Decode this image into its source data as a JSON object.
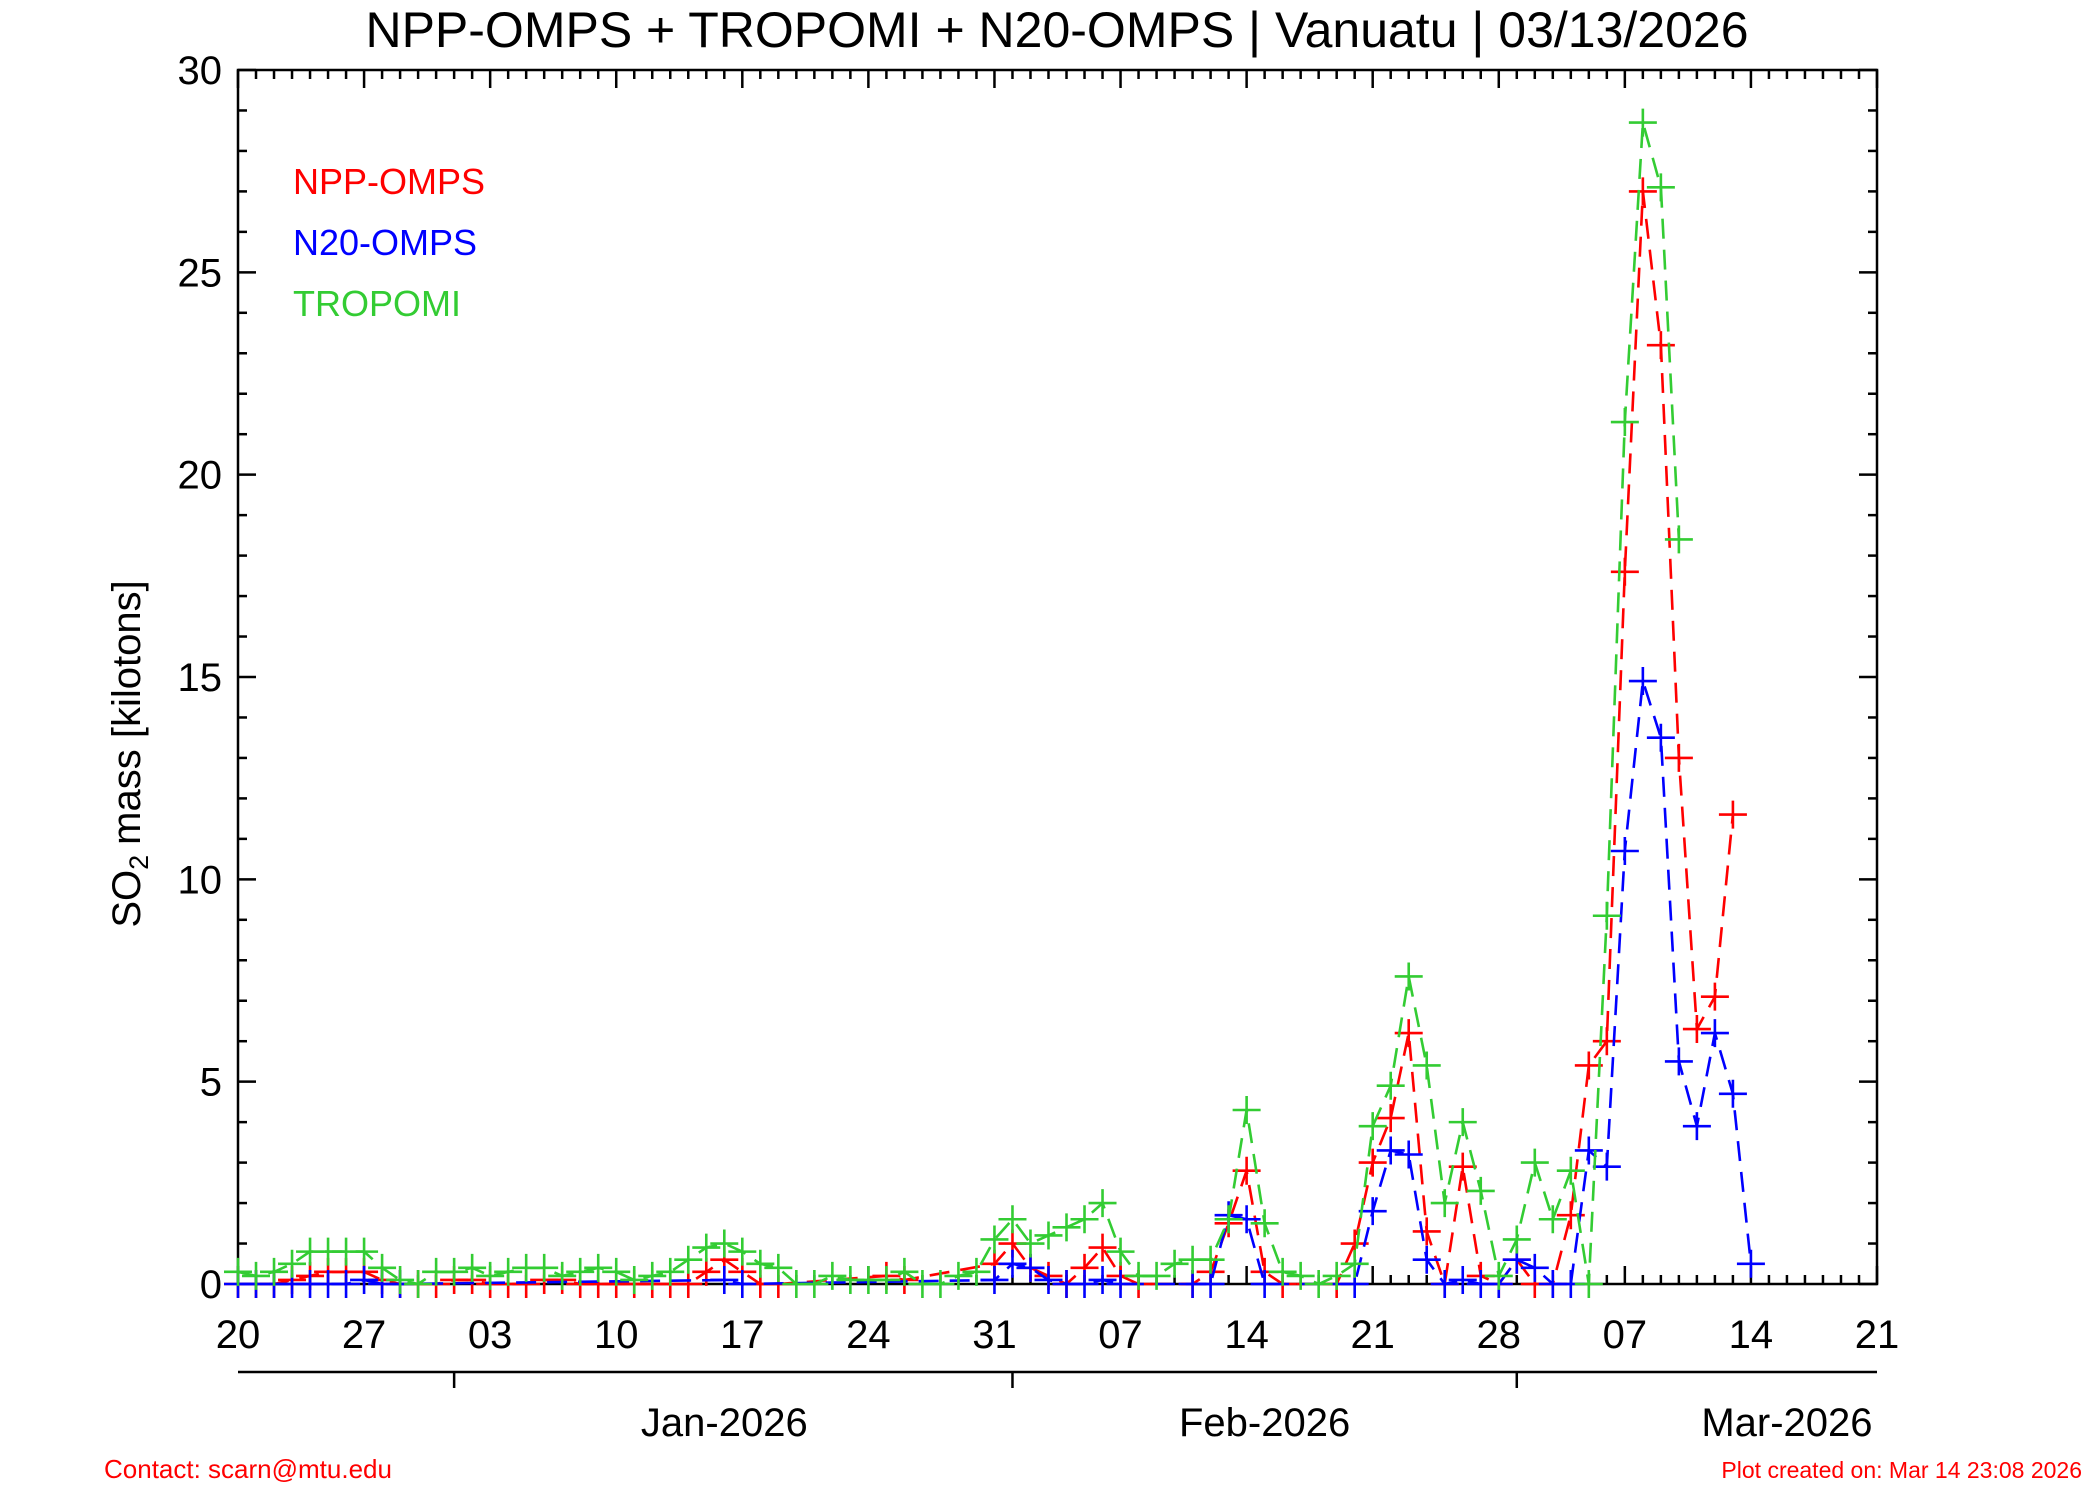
{
  "chart_data": {
    "type": "line",
    "title": "NPP-OMPS + TROPOMI + N20-OMPS | Vanuatu | 03/13/2026",
    "ylabel": "mass [kilotons]",
    "ylabel_prefix": "SO",
    "ylabel_subscript": "2",
    "xlabel": "",
    "ylim": [
      0,
      30
    ],
    "y_ticks": [
      0,
      5,
      10,
      15,
      20,
      25,
      30
    ],
    "x_start": "2025-12-20",
    "x_end": "2026-03-21",
    "x_tick_labels": [
      {
        "date": "2025-12-20",
        "label": "20"
      },
      {
        "date": "2025-12-27",
        "label": "27"
      },
      {
        "date": "2026-01-03",
        "label": "03"
      },
      {
        "date": "2026-01-10",
        "label": "10"
      },
      {
        "date": "2026-01-17",
        "label": "17"
      },
      {
        "date": "2026-01-24",
        "label": "24"
      },
      {
        "date": "2026-01-31",
        "label": "31"
      },
      {
        "date": "2026-02-07",
        "label": "07"
      },
      {
        "date": "2026-02-14",
        "label": "14"
      },
      {
        "date": "2026-02-21",
        "label": "21"
      },
      {
        "date": "2026-02-28",
        "label": "28"
      },
      {
        "date": "2026-03-07",
        "label": "07"
      },
      {
        "date": "2026-03-14",
        "label": "14"
      },
      {
        "date": "2026-03-21",
        "label": "21"
      }
    ],
    "month_labels": [
      {
        "boundary": "2026-01-01",
        "center": "2026-01-16",
        "label": "Jan-2026"
      },
      {
        "boundary": "2026-02-01",
        "center": "2026-02-15",
        "label": "Feb-2026"
      },
      {
        "boundary": "2026-03-01",
        "center": "2026-03-16",
        "label": "Mar-2026"
      }
    ],
    "grid": false,
    "legend_position": "top-left",
    "series": [
      {
        "name": "NPP-OMPS",
        "color": "#ff0000",
        "points": [
          [
            "2025-12-20",
            0.0
          ],
          [
            "2025-12-21",
            0.0
          ],
          [
            "2025-12-22",
            0.0
          ],
          [
            "2025-12-23",
            0.1
          ],
          [
            "2025-12-24",
            0.2
          ],
          [
            "2025-12-25",
            0.3
          ],
          [
            "2025-12-26",
            0.3
          ],
          [
            "2025-12-27",
            0.3
          ],
          [
            "2025-12-28",
            0.1
          ],
          [
            "2025-12-29",
            0.0
          ],
          [
            "2025-12-30",
            0.0
          ],
          [
            "2025-12-31",
            0.0
          ],
          [
            "2026-01-01",
            0.1
          ],
          [
            "2026-01-02",
            0.1
          ],
          [
            "2026-01-03",
            0.0
          ],
          [
            "2026-01-04",
            0.0
          ],
          [
            "2026-01-05",
            0.0
          ],
          [
            "2026-01-06",
            0.1
          ],
          [
            "2026-01-07",
            0.1
          ],
          [
            "2026-01-08",
            0.0
          ],
          [
            "2026-01-09",
            0.0
          ],
          [
            "2026-01-10",
            0.0
          ],
          [
            "2026-01-11",
            0.0
          ],
          [
            "2026-01-12",
            0.0
          ],
          [
            "2026-01-13",
            0.0
          ],
          [
            "2026-01-14",
            0.0
          ],
          [
            "2026-01-15",
            0.3
          ],
          [
            "2026-01-16",
            0.6
          ],
          [
            "2026-01-17",
            0.3
          ],
          [
            "2026-01-18",
            0.0
          ],
          [
            "2026-01-19",
            0.0
          ],
          [
            "2026-01-25",
            0.2
          ],
          [
            "2026-01-26",
            0.1
          ],
          [
            "2026-01-31",
            0.5
          ],
          [
            "2026-02-01",
            1.0
          ],
          [
            "2026-02-02",
            0.4
          ],
          [
            "2026-02-03",
            0.2
          ],
          [
            "2026-02-04",
            0.0
          ],
          [
            "2026-02-05",
            0.4
          ],
          [
            "2026-02-06",
            0.9
          ],
          [
            "2026-02-07",
            0.2
          ],
          [
            "2026-02-08",
            0.0
          ],
          [
            "2026-02-11",
            0.0
          ],
          [
            "2026-02-12",
            0.3
          ],
          [
            "2026-02-13",
            1.5
          ],
          [
            "2026-02-14",
            2.8
          ],
          [
            "2026-02-15",
            0.3
          ],
          [
            "2026-02-16",
            0.0
          ],
          [
            "2026-02-19",
            0.0
          ],
          [
            "2026-02-20",
            1.0
          ],
          [
            "2026-02-21",
            3.0
          ],
          [
            "2026-02-22",
            4.1
          ],
          [
            "2026-02-23",
            6.2
          ],
          [
            "2026-02-24",
            1.3
          ],
          [
            "2026-02-25",
            0.0
          ],
          [
            "2026-02-26",
            2.9
          ],
          [
            "2026-02-27",
            0.2
          ],
          [
            "2026-02-28",
            0.0
          ],
          [
            "2026-03-01",
            0.6
          ],
          [
            "2026-03-02",
            0.0
          ],
          [
            "2026-03-03",
            0.0
          ],
          [
            "2026-03-04",
            1.7
          ],
          [
            "2026-03-05",
            5.4
          ],
          [
            "2026-03-06",
            6.0
          ],
          [
            "2026-03-07",
            17.6
          ],
          [
            "2026-03-08",
            27.0
          ],
          [
            "2026-03-09",
            23.2
          ],
          [
            "2026-03-10",
            13.0
          ],
          [
            "2026-03-11",
            6.3
          ],
          [
            "2026-03-12",
            7.1
          ],
          [
            "2026-03-13",
            11.6
          ]
        ]
      },
      {
        "name": "N20-OMPS",
        "color": "#0000ff",
        "points": [
          [
            "2025-12-20",
            0.0
          ],
          [
            "2025-12-21",
            0.0
          ],
          [
            "2025-12-22",
            0.0
          ],
          [
            "2025-12-23",
            0.0
          ],
          [
            "2025-12-24",
            0.0
          ],
          [
            "2025-12-25",
            0.0
          ],
          [
            "2025-12-26",
            0.0
          ],
          [
            "2025-12-27",
            0.1
          ],
          [
            "2025-12-28",
            0.0
          ],
          [
            "2025-12-29",
            0.0
          ],
          [
            "2026-01-16",
            0.1
          ],
          [
            "2026-01-17",
            0.0
          ],
          [
            "2026-01-31",
            0.1
          ],
          [
            "2026-02-01",
            0.5
          ],
          [
            "2026-02-02",
            0.4
          ],
          [
            "2026-02-03",
            0.1
          ],
          [
            "2026-02-04",
            0.0
          ],
          [
            "2026-02-05",
            0.0
          ],
          [
            "2026-02-06",
            0.1
          ],
          [
            "2026-02-07",
            0.0
          ],
          [
            "2026-02-11",
            0.0
          ],
          [
            "2026-02-12",
            0.0
          ],
          [
            "2026-02-13",
            1.7
          ],
          [
            "2026-02-14",
            1.6
          ],
          [
            "2026-02-15",
            0.0
          ],
          [
            "2026-02-20",
            0.0
          ],
          [
            "2026-02-21",
            1.8
          ],
          [
            "2026-02-22",
            3.3
          ],
          [
            "2026-02-23",
            3.2
          ],
          [
            "2026-02-24",
            0.6
          ],
          [
            "2026-02-25",
            0.0
          ],
          [
            "2026-02-26",
            0.1
          ],
          [
            "2026-02-27",
            0.0
          ],
          [
            "2026-02-28",
            0.0
          ],
          [
            "2026-03-01",
            0.6
          ],
          [
            "2026-03-02",
            0.4
          ],
          [
            "2026-03-03",
            0.0
          ],
          [
            "2026-03-04",
            0.0
          ],
          [
            "2026-03-05",
            3.3
          ],
          [
            "2026-03-06",
            2.9
          ],
          [
            "2026-03-07",
            10.7
          ],
          [
            "2026-03-08",
            14.9
          ],
          [
            "2026-03-09",
            13.5
          ],
          [
            "2026-03-10",
            5.5
          ],
          [
            "2026-03-11",
            3.9
          ],
          [
            "2026-03-12",
            6.2
          ],
          [
            "2026-03-13",
            4.7
          ],
          [
            "2026-03-14",
            0.5
          ]
        ]
      },
      {
        "name": "TROPOMI",
        "color": "#33cc33",
        "points": [
          [
            "2025-12-20",
            0.3
          ],
          [
            "2025-12-21",
            0.2
          ],
          [
            "2025-12-22",
            0.3
          ],
          [
            "2025-12-23",
            0.5
          ],
          [
            "2025-12-24",
            0.8
          ],
          [
            "2025-12-25",
            0.8
          ],
          [
            "2025-12-26",
            0.8
          ],
          [
            "2025-12-27",
            0.8
          ],
          [
            "2025-12-28",
            0.4
          ],
          [
            "2025-12-29",
            0.1
          ],
          [
            "2025-12-30",
            0.0
          ],
          [
            "2025-12-31",
            0.3
          ],
          [
            "2026-01-01",
            0.3
          ],
          [
            "2026-01-02",
            0.4
          ],
          [
            "2026-01-03",
            0.2
          ],
          [
            "2026-01-04",
            0.3
          ],
          [
            "2026-01-05",
            0.4
          ],
          [
            "2026-01-06",
            0.4
          ],
          [
            "2026-01-07",
            0.2
          ],
          [
            "2026-01-08",
            0.3
          ],
          [
            "2026-01-09",
            0.4
          ],
          [
            "2026-01-10",
            0.3
          ],
          [
            "2026-01-11",
            0.1
          ],
          [
            "2026-01-12",
            0.2
          ],
          [
            "2026-01-13",
            0.3
          ],
          [
            "2026-01-14",
            0.6
          ],
          [
            "2026-01-15",
            0.9
          ],
          [
            "2026-01-16",
            1.0
          ],
          [
            "2026-01-17",
            0.8
          ],
          [
            "2026-01-18",
            0.5
          ],
          [
            "2026-01-19",
            0.4
          ],
          [
            "2026-01-20",
            0.0
          ],
          [
            "2026-01-21",
            0.0
          ],
          [
            "2026-01-22",
            0.2
          ],
          [
            "2026-01-23",
            0.1
          ],
          [
            "2026-01-24",
            0.1
          ],
          [
            "2026-01-25",
            0.1
          ],
          [
            "2026-01-26",
            0.3
          ],
          [
            "2026-01-27",
            0.0
          ],
          [
            "2026-01-28",
            0.0
          ],
          [
            "2026-01-29",
            0.2
          ],
          [
            "2026-01-30",
            0.3
          ],
          [
            "2026-01-31",
            1.1
          ],
          [
            "2026-02-01",
            1.6
          ],
          [
            "2026-02-02",
            1.0
          ],
          [
            "2026-02-03",
            1.2
          ],
          [
            "2026-02-04",
            1.4
          ],
          [
            "2026-02-05",
            1.6
          ],
          [
            "2026-02-06",
            2.0
          ],
          [
            "2026-02-07",
            0.8
          ],
          [
            "2026-02-08",
            0.2
          ],
          [
            "2026-02-09",
            0.2
          ],
          [
            "2026-02-10",
            0.5
          ],
          [
            "2026-02-11",
            0.6
          ],
          [
            "2026-02-12",
            0.6
          ],
          [
            "2026-02-13",
            1.6
          ],
          [
            "2026-02-14",
            4.3
          ],
          [
            "2026-02-15",
            1.5
          ],
          [
            "2026-02-16",
            0.3
          ],
          [
            "2026-02-17",
            0.2
          ],
          [
            "2026-02-18",
            0.0
          ],
          [
            "2026-02-19",
            0.2
          ],
          [
            "2026-02-20",
            0.5
          ],
          [
            "2026-02-21",
            3.9
          ],
          [
            "2026-02-22",
            4.9
          ],
          [
            "2026-02-23",
            7.6
          ],
          [
            "2026-02-24",
            5.4
          ],
          [
            "2026-02-25",
            2.0
          ],
          [
            "2026-02-26",
            4.0
          ],
          [
            "2026-02-27",
            2.3
          ],
          [
            "2026-02-28",
            0.2
          ],
          [
            "2026-03-01",
            1.1
          ],
          [
            "2026-03-02",
            3.0
          ],
          [
            "2026-03-03",
            1.6
          ],
          [
            "2026-03-04",
            2.8
          ],
          [
            "2026-03-05",
            0.0
          ],
          [
            "2026-03-06",
            9.1
          ],
          [
            "2026-03-07",
            21.3
          ],
          [
            "2026-03-08",
            28.7
          ],
          [
            "2026-03-09",
            27.1
          ],
          [
            "2026-03-10",
            18.4
          ]
        ]
      }
    ]
  },
  "footer": {
    "contact": "Contact: scarn@mtu.edu",
    "created": "Plot created on: Mar 14 23:08 2026"
  }
}
